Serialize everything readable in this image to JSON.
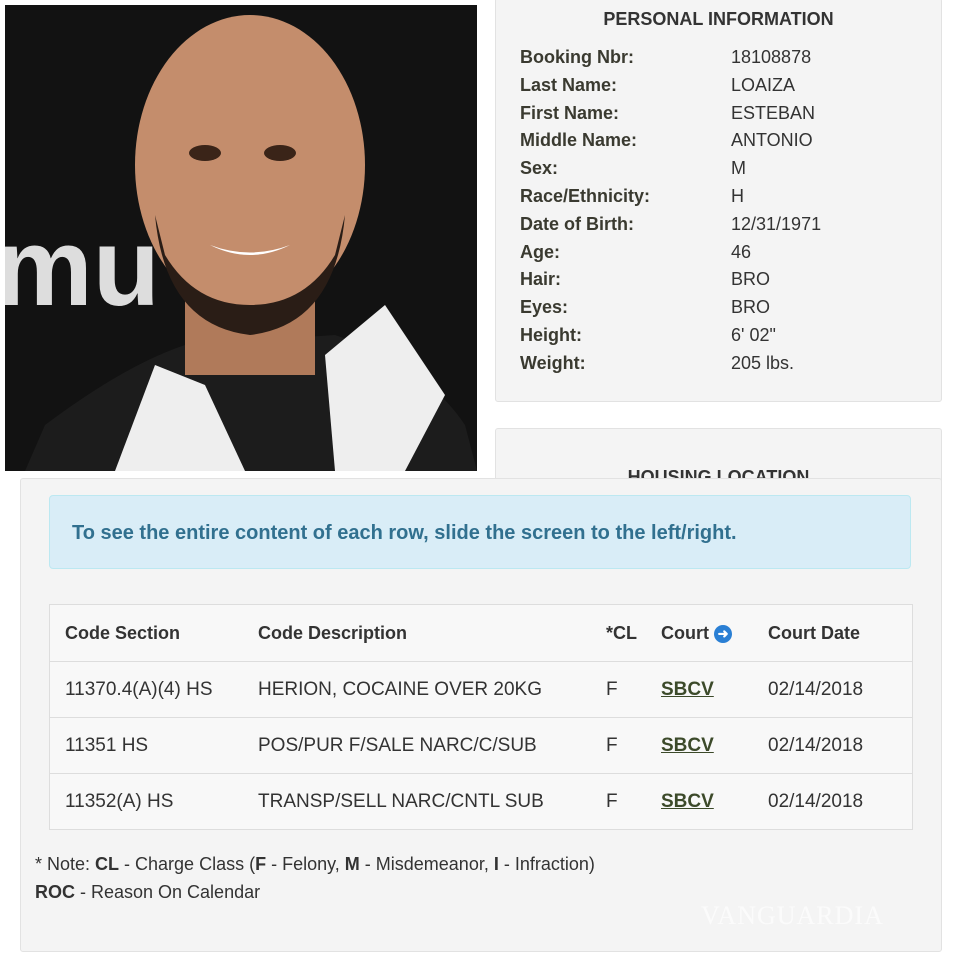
{
  "photo": {
    "sign_text": "mu"
  },
  "personal": {
    "title": "PERSONAL INFORMATION",
    "fields": [
      {
        "label": "Booking Nbr:",
        "value": "18108878"
      },
      {
        "label": "Last Name:",
        "value": "LOAIZA"
      },
      {
        "label": "First Name:",
        "value": "ESTEBAN"
      },
      {
        "label": "Middle Name:",
        "value": "ANTONIO"
      },
      {
        "label": "Sex:",
        "value": "M"
      },
      {
        "label": "Race/Ethnicity:",
        "value": "H"
      },
      {
        "label": "Date of Birth:",
        "value": "12/31/1971"
      },
      {
        "label": "Age:",
        "value": "46"
      },
      {
        "label": "Hair:",
        "value": "BRO"
      },
      {
        "label": "Eyes:",
        "value": "BRO"
      },
      {
        "label": "Height:",
        "value": "6' 02\""
      },
      {
        "label": "Weight:",
        "value": "205 lbs."
      }
    ]
  },
  "housing": {
    "title": "HOUSING LOCATION"
  },
  "alert": "To see the entire content of each row, slide the screen to the left/right.",
  "charges": {
    "headers": [
      "Code Section",
      "Code Description",
      "*CL",
      "Court",
      "Court Date"
    ],
    "rows": [
      [
        "11370.4(A)(4) HS",
        "HERION, COCAINE OVER 20KG",
        "F",
        "SBCV",
        "02/14/2018"
      ],
      [
        "11351 HS",
        "POS/PUR F/SALE NARC/C/SUB",
        "F",
        "SBCV",
        "02/14/2018"
      ],
      [
        "11352(A) HS",
        "TRANSP/SELL NARC/CNTL SUB",
        "F",
        "SBCV",
        "02/14/2018"
      ]
    ]
  },
  "note": {
    "prefix": "* Note: ",
    "cl": "CL",
    " cl_text": "",
    "cl_desc": " - Charge Class (",
    "f": "F",
    "f_desc": " - Felony, ",
    "m": "M",
    "m_desc": " - Misdemeanor, ",
    "i": "I",
    "i_desc": " - Infraction)",
    "roc": "ROC",
    "roc_desc": " - Reason On Calendar"
  },
  "watermark": "VANGUARDIA",
  "colors": {
    "alert_bg": "#d9edf7",
    "alert_text": "#31708f",
    "court_icon": "#2a7fd4"
  }
}
